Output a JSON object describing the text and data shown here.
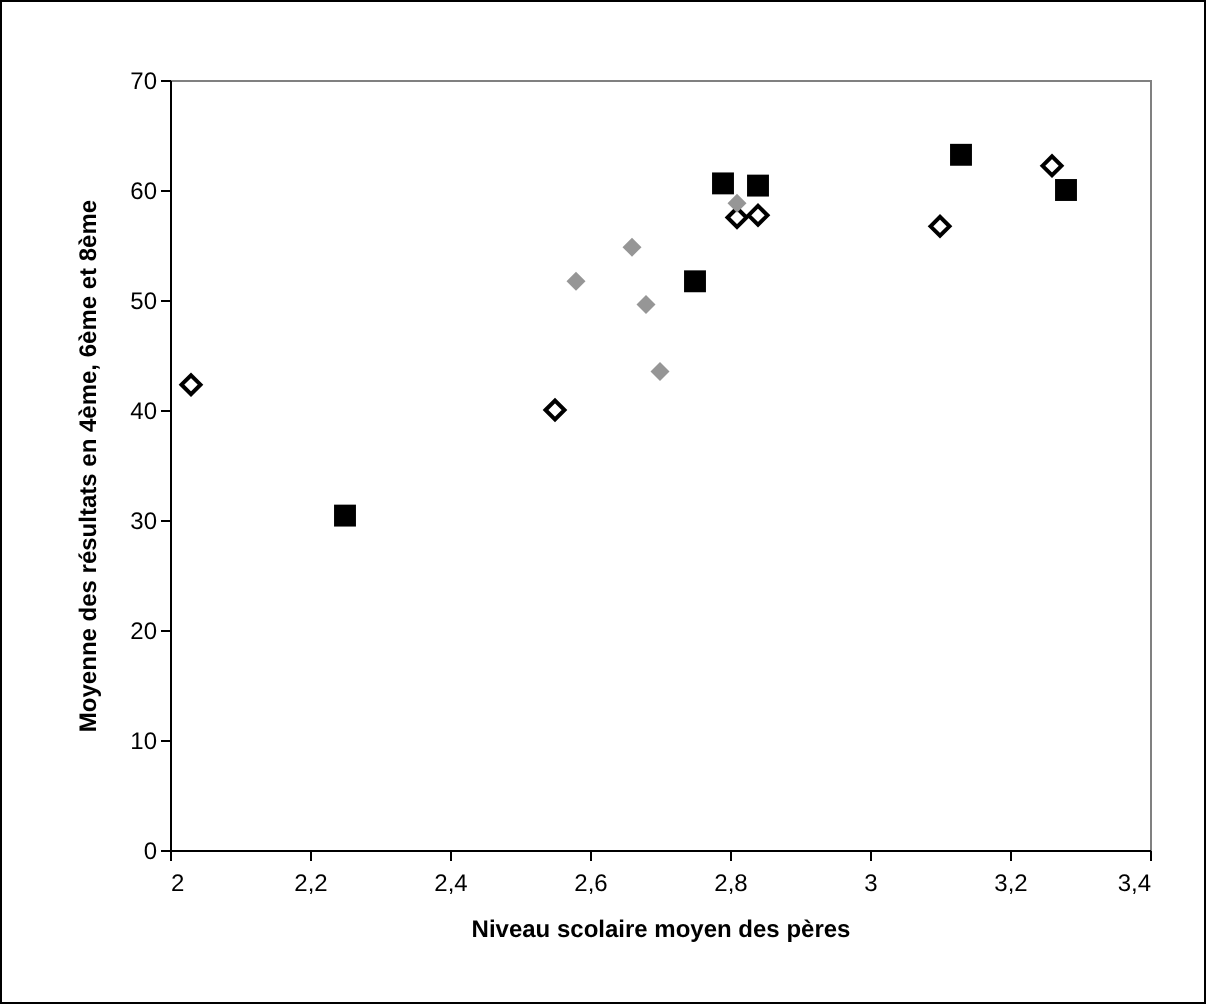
{
  "chart_data": {
    "type": "scatter",
    "xlabel": "Niveau scolaire moyen des pères",
    "ylabel": "Moyenne des résultats en 4ème, 6ème et 8ème",
    "xlim": [
      2,
      3.4
    ],
    "xticks": [
      {
        "value": 2,
        "label": "2"
      },
      {
        "value": 2.2,
        "label": "2,2"
      },
      {
        "value": 2.4,
        "label": "2,4"
      },
      {
        "value": 2.6,
        "label": "2,6"
      },
      {
        "value": 2.8,
        "label": "2,8"
      },
      {
        "value": 3,
        "label": "3"
      },
      {
        "value": 3.2,
        "label": "3,2"
      },
      {
        "value": 3.4,
        "label": "3,4"
      }
    ],
    "ylim": [
      0,
      70
    ],
    "yticks": [
      0,
      10,
      20,
      30,
      40,
      50,
      60,
      70
    ],
    "grid": false,
    "series": [
      {
        "color": "#000000",
        "marker": "diamond",
        "x": [
          2.03,
          2.55,
          2.81,
          2.84,
          3.1,
          3.26
        ],
        "values": [
          42.3,
          40,
          57.5,
          57.7,
          56.7,
          62.2
        ]
      },
      {
        "color": "#969696",
        "marker": "diamond",
        "x": [
          2.58,
          2.66,
          2.68,
          2.7,
          2.81
        ],
        "values": [
          51.7,
          54.8,
          49.6,
          43.5,
          58.8
        ]
      },
      {
        "color": "#000000",
        "marker": "square",
        "x": [
          2.25,
          2.75,
          2.79,
          2.84,
          3.13,
          3.28
        ],
        "values": [
          30.4,
          51.7,
          60.6,
          60.4,
          63.2,
          60
        ]
      }
    ]
  }
}
